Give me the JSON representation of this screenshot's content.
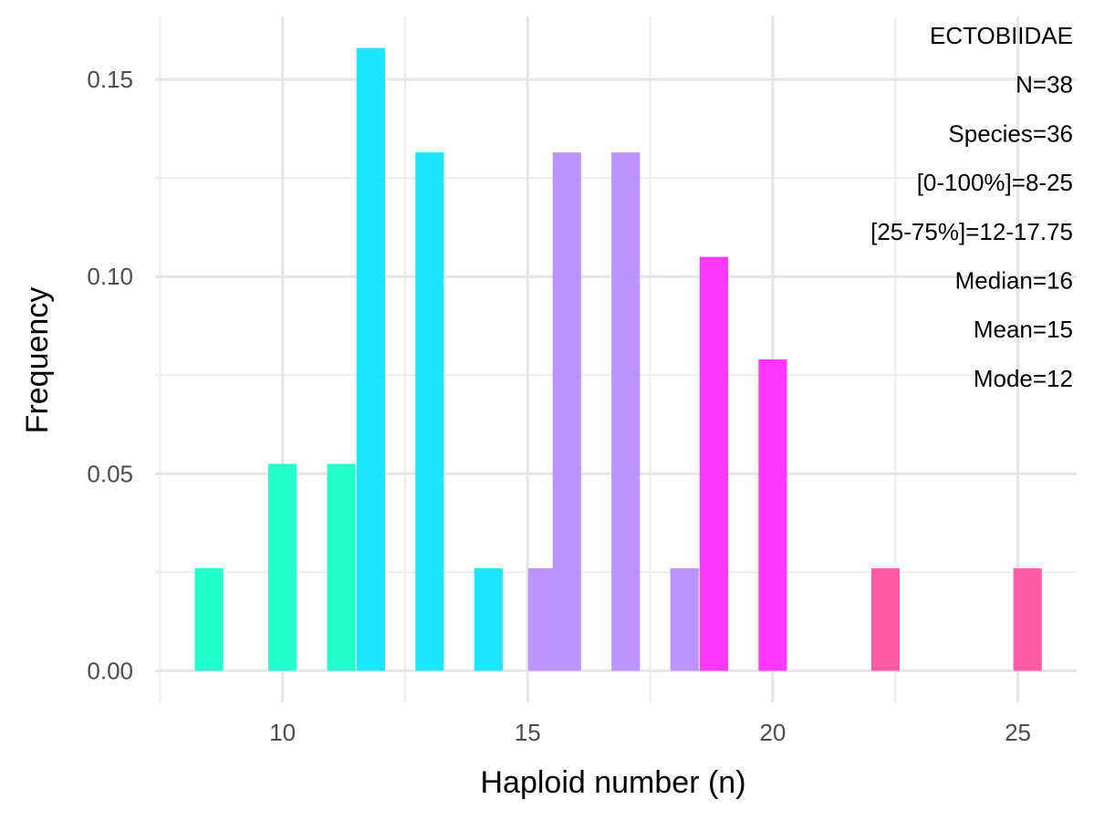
{
  "chart_data": {
    "type": "bar",
    "xlabel": "Haploid number (n)",
    "ylabel": "Frequency",
    "xlim": [
      7.4,
      26.2
    ],
    "ylim": [
      -0.008,
      0.166
    ],
    "x_ticks": [
      10,
      15,
      20,
      25
    ],
    "x_tick_labels": [
      "10",
      "15",
      "20",
      "25"
    ],
    "y_ticks": [
      0,
      0.05,
      0.1,
      0.15
    ],
    "y_tick_labels": [
      "0.00",
      "0.05",
      "0.10",
      "0.15"
    ],
    "grid": true,
    "legend": "none",
    "bar_width": 0.58,
    "bars": [
      {
        "x": 8.5,
        "y": 0.026,
        "color": "#24FFCE"
      },
      {
        "x": 10.0,
        "y": 0.0525,
        "color": "#24FFCE"
      },
      {
        "x": 11.2,
        "y": 0.0525,
        "color": "#24FFCE"
      },
      {
        "x": 11.8,
        "y": 0.158,
        "color": "#1CE6FF"
      },
      {
        "x": 13.0,
        "y": 0.1315,
        "color": "#1CE6FF"
      },
      {
        "x": 14.2,
        "y": 0.026,
        "color": "#1CE6FF"
      },
      {
        "x": 15.3,
        "y": 0.026,
        "color": "#BB94FF"
      },
      {
        "x": 15.8,
        "y": 0.1315,
        "color": "#BB94FF"
      },
      {
        "x": 17.0,
        "y": 0.1315,
        "color": "#BB94FF"
      },
      {
        "x": 18.2,
        "y": 0.026,
        "color": "#BB94FF"
      },
      {
        "x": 18.8,
        "y": 0.105,
        "color": "#FF38FF"
      },
      {
        "x": 20.0,
        "y": 0.079,
        "color": "#FF38FF"
      },
      {
        "x": 22.3,
        "y": 0.026,
        "color": "#FF5CA6"
      },
      {
        "x": 25.2,
        "y": 0.026,
        "color": "#FF5CA6"
      }
    ],
    "annotations": [
      "ECTOBIIDAE",
      "N=38",
      "Species=36",
      "[0-100%]=8-25",
      "[25-75%]=12-17.75",
      "Median=16",
      "Mean=15",
      "Mode=12"
    ]
  }
}
